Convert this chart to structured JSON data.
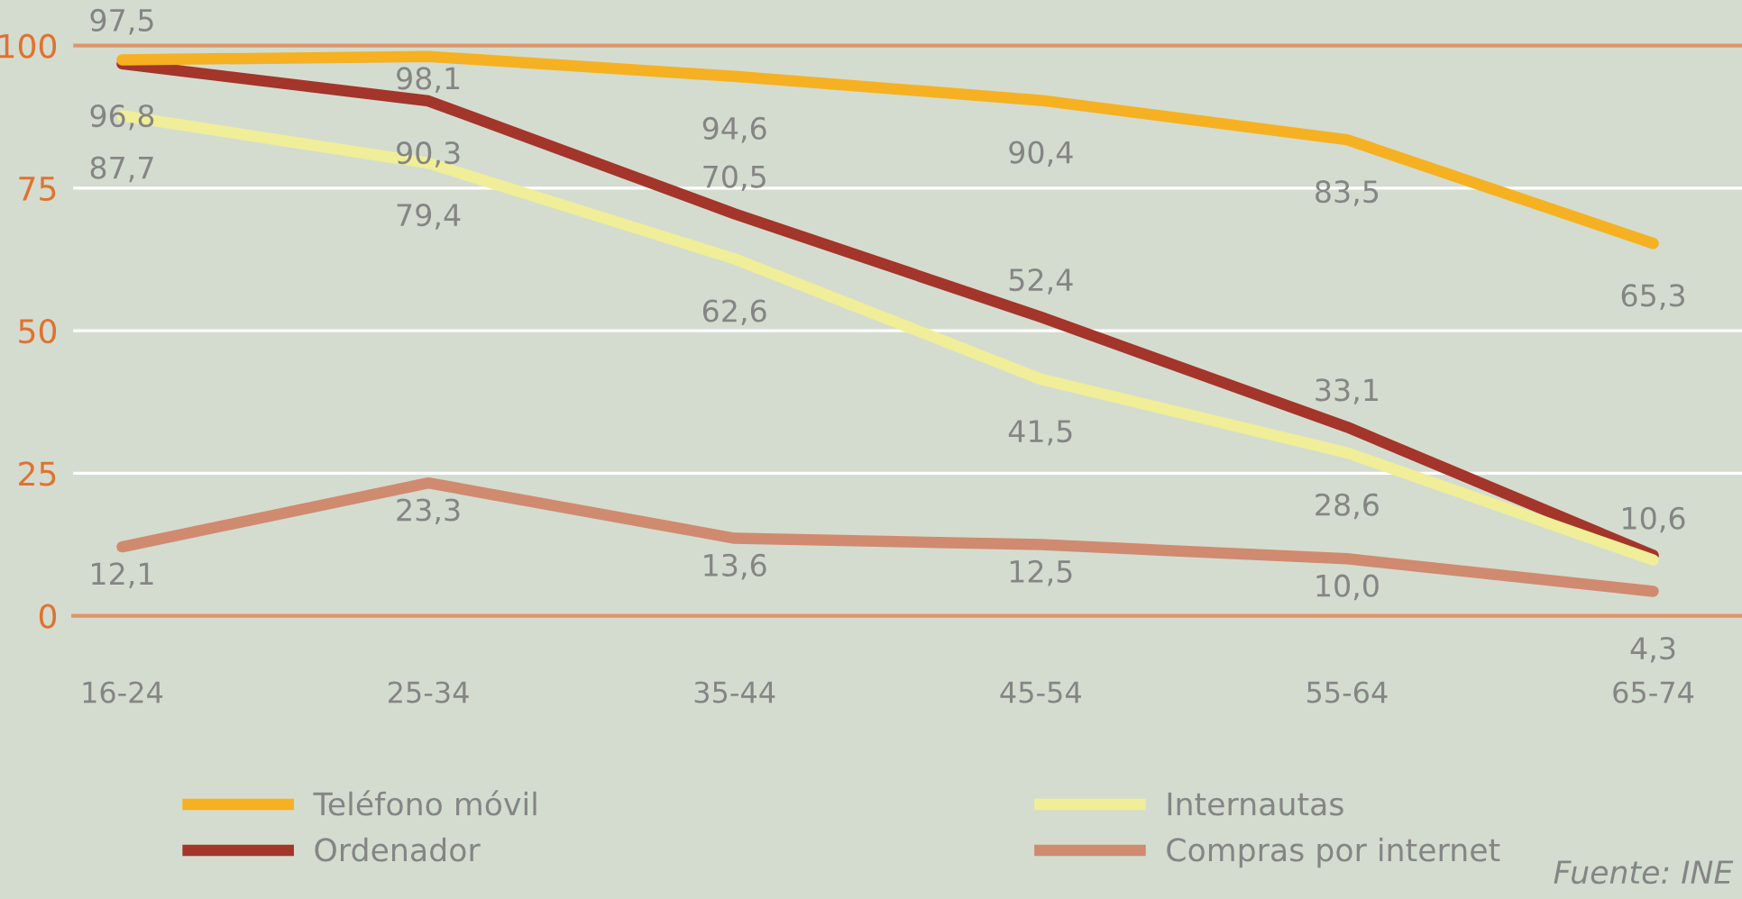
{
  "chart_data": {
    "type": "line",
    "categories": [
      "16-24",
      "25-34",
      "35-44",
      "45-54",
      "55-64",
      "65-74"
    ],
    "series": [
      {
        "name": "Teléfono móvil",
        "color": "#f5b122",
        "values": [
          97.5,
          98.1,
          94.6,
          90.4,
          83.5,
          65.3
        ],
        "value_labels": [
          "97,5",
          "98,1",
          "94,6",
          "90,4",
          "83,5",
          "65,3"
        ]
      },
      {
        "name": "Ordenador",
        "color": "#a3352a",
        "values": [
          96.8,
          90.3,
          70.5,
          52.4,
          33.1,
          10.6
        ],
        "value_labels": [
          "96,8",
          "90,3",
          "70,5",
          "52,4",
          "33,1",
          "10,6"
        ]
      },
      {
        "name": "Internautas",
        "color": "#f0ee98",
        "values": [
          87.7,
          79.4,
          62.6,
          41.5,
          28.6,
          9.8
        ],
        "value_labels": [
          "87,7",
          "79,4",
          "62,6",
          "41,5",
          "28,6",
          null
        ]
      },
      {
        "name": "Compras por internet",
        "color": "#d08a70",
        "values": [
          12.1,
          23.3,
          13.6,
          12.5,
          10.0,
          4.3
        ],
        "value_labels": [
          "12,1",
          "23,3",
          "13,6",
          "12,5",
          "10,0",
          "4,3"
        ]
      }
    ],
    "ylim": [
      0,
      108
    ],
    "yticks": [
      0,
      25,
      50,
      75,
      100
    ],
    "grid": "y",
    "legend": "bottom",
    "marker": "none",
    "line_style": "solid",
    "ref_lines": [
      {
        "axis": "y",
        "value": 100,
        "label": null,
        "color": "#e0956a"
      }
    ],
    "annotations": [
      "Fuente: INE"
    ]
  }
}
